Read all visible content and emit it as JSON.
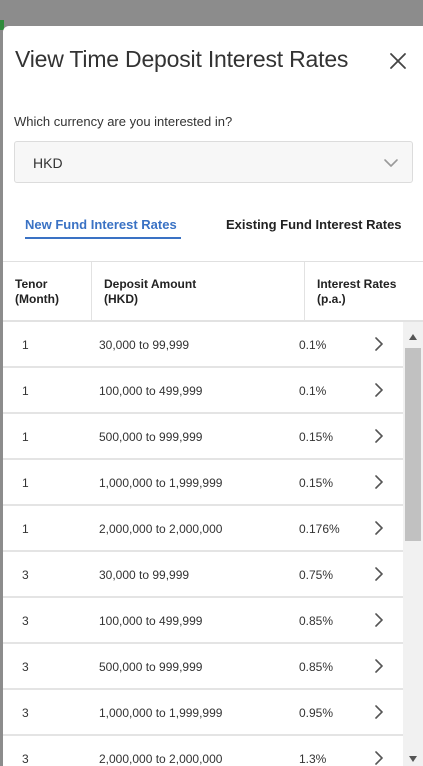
{
  "dialog": {
    "title": "View Time Deposit Interest Rates",
    "close_icon": "close-icon"
  },
  "currency": {
    "label": "Which currency are you interested in?",
    "selected": "HKD",
    "icon": "chevron-down-icon"
  },
  "tabs": [
    {
      "label": "New Fund Interest Rates",
      "active": true
    },
    {
      "label": "Existing Fund Interest Rates",
      "active": false
    }
  ],
  "table": {
    "headers": {
      "tenor": [
        "Tenor",
        "(Month)"
      ],
      "amount": [
        "Deposit Amount",
        "(HKD)"
      ],
      "rate": [
        "Interest Rates",
        "(p.a.)"
      ]
    },
    "rows": [
      {
        "tenor": "1",
        "amount": "30,000 to 99,999",
        "rate": "0.1%"
      },
      {
        "tenor": "1",
        "amount": "100,000 to 499,999",
        "rate": "0.1%"
      },
      {
        "tenor": "1",
        "amount": "500,000 to 999,999",
        "rate": "0.15%"
      },
      {
        "tenor": "1",
        "amount": "1,000,000 to 1,999,999",
        "rate": "0.15%"
      },
      {
        "tenor": "1",
        "amount": "2,000,000 to 2,000,000",
        "rate": "0.176%"
      },
      {
        "tenor": "3",
        "amount": "30,000 to 99,999",
        "rate": "0.75%"
      },
      {
        "tenor": "3",
        "amount": "100,000 to 499,999",
        "rate": "0.85%"
      },
      {
        "tenor": "3",
        "amount": "500,000 to 999,999",
        "rate": "0.85%"
      },
      {
        "tenor": "3",
        "amount": "1,000,000 to 1,999,999",
        "rate": "0.95%"
      },
      {
        "tenor": "3",
        "amount": "2,000,000 to 2,000,000",
        "rate": "1.3%"
      }
    ]
  },
  "colors": {
    "accent": "#3a72c4",
    "text": "#333333",
    "overlay": "#8c8c8c"
  }
}
